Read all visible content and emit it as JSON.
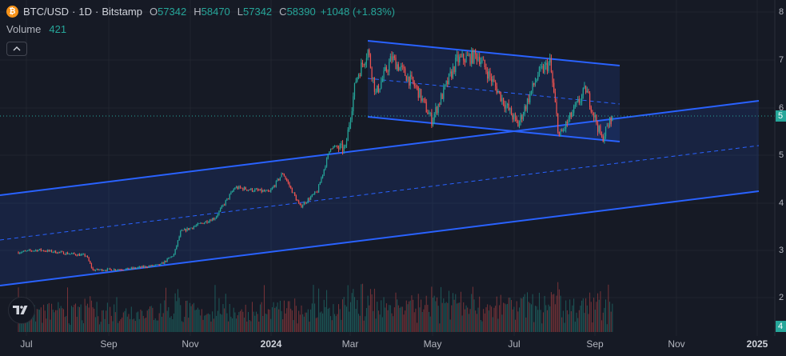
{
  "header": {
    "coin_glyph": "₿",
    "symbol": "BTC/USD",
    "interval": "1D",
    "exchange": "Bitstamp",
    "separator": "·",
    "ohlc": [
      {
        "key": "O",
        "value": "57342"
      },
      {
        "key": "H",
        "value": "58470"
      },
      {
        "key": "L",
        "value": "57342"
      },
      {
        "key": "C",
        "value": "58390"
      }
    ],
    "change": "+1048 (+1.83%)"
  },
  "volume": {
    "label": "Volume",
    "value": "421"
  },
  "price_tag": {
    "value": "58390",
    "text": "5",
    "color": "#26a69a"
  },
  "volume_tag": {
    "value": "421",
    "text": "4",
    "color": "#26a69a"
  },
  "y_axis_labels": [
    "8",
    "7",
    "6",
    "5",
    "4",
    "3",
    "2"
  ],
  "colors": {
    "background": "#161a25",
    "up": "#26a69a",
    "down": "#ef5350",
    "channel_line": "#2962ff",
    "channel_fill": "#2962ff",
    "grid": "#20242e"
  },
  "icons": {
    "collapse": "chevron-up-icon",
    "logo": "tradingview-logo-icon",
    "coin": "bitcoin-icon"
  },
  "chart_data": {
    "type": "candlestick",
    "symbol": "BTC/USD",
    "interval": "1D",
    "x_tick_labels": [
      "Jul",
      "Sep",
      "Nov",
      "2024",
      "Mar",
      "May",
      "Jul",
      "Sep",
      "Nov",
      "2025"
    ],
    "y_tick_labels": [
      "8",
      "7",
      "6",
      "5",
      "4",
      "3",
      "2"
    ],
    "grid": true,
    "price_path": [
      {
        "date": "2023-06-25",
        "close": 30000
      },
      {
        "date": "2023-07-10",
        "close": 30500
      },
      {
        "date": "2023-08-15",
        "close": 29300
      },
      {
        "date": "2023-08-20",
        "close": 26300
      },
      {
        "date": "2023-09-15",
        "close": 26500
      },
      {
        "date": "2023-10-10",
        "close": 27400
      },
      {
        "date": "2023-10-20",
        "close": 29500
      },
      {
        "date": "2023-10-25",
        "close": 34200
      },
      {
        "date": "2023-11-20",
        "close": 37200
      },
      {
        "date": "2023-12-05",
        "close": 43500
      },
      {
        "date": "2023-12-31",
        "close": 42500
      },
      {
        "date": "2024-01-10",
        "close": 46500
      },
      {
        "date": "2024-01-23",
        "close": 39500
      },
      {
        "date": "2024-02-05",
        "close": 42700
      },
      {
        "date": "2024-02-15",
        "close": 52000
      },
      {
        "date": "2024-02-26",
        "close": 51500
      },
      {
        "date": "2024-03-05",
        "close": 66000
      },
      {
        "date": "2024-03-14",
        "close": 72000
      },
      {
        "date": "2024-03-20",
        "close": 63000
      },
      {
        "date": "2024-04-01",
        "close": 70500
      },
      {
        "date": "2024-04-20",
        "close": 64000
      },
      {
        "date": "2024-05-01",
        "close": 57500
      },
      {
        "date": "2024-05-20",
        "close": 70000
      },
      {
        "date": "2024-06-05",
        "close": 71000
      },
      {
        "date": "2024-06-25",
        "close": 61000
      },
      {
        "date": "2024-07-05",
        "close": 56500
      },
      {
        "date": "2024-07-20",
        "close": 67000
      },
      {
        "date": "2024-07-29",
        "close": 69500
      },
      {
        "date": "2024-08-05",
        "close": 54000
      },
      {
        "date": "2024-08-25",
        "close": 64000
      },
      {
        "date": "2024-09-06",
        "close": 53500
      },
      {
        "date": "2024-09-14",
        "close": 58390
      }
    ],
    "volume": {
      "last": 421
    }
  }
}
